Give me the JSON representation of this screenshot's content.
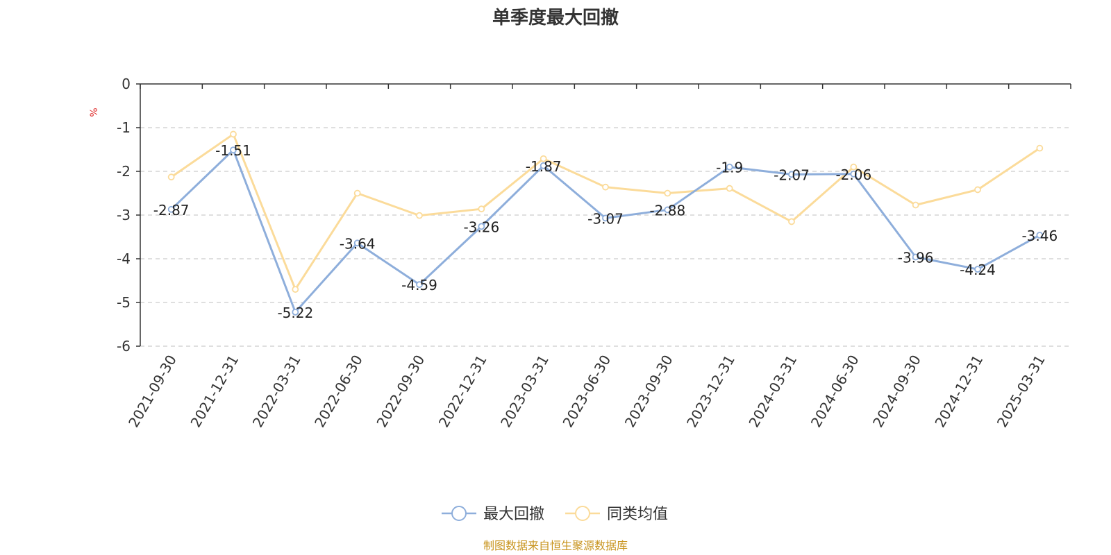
{
  "chart_data": {
    "type": "line",
    "title": "单季度最大回撤",
    "ylabel": "%",
    "ylim": [
      -6,
      0
    ],
    "yticks": [
      0,
      -1,
      -2,
      -3,
      -4,
      -5,
      -6
    ],
    "grid": true,
    "categories": [
      "2021-09-30",
      "2021-12-31",
      "2022-03-31",
      "2022-06-30",
      "2022-09-30",
      "2022-12-31",
      "2023-03-31",
      "2023-06-30",
      "2023-09-30",
      "2023-12-31",
      "2024-03-31",
      "2024-06-30",
      "2024-09-30",
      "2024-12-31",
      "2025-03-31"
    ],
    "series": [
      {
        "name": "最大回撤",
        "color": "#8eaedb",
        "values": [
          -2.87,
          -1.51,
          -5.22,
          -3.64,
          -4.59,
          -3.26,
          -1.87,
          -3.07,
          -2.88,
          -1.9,
          -2.07,
          -2.06,
          -3.96,
          -4.24,
          -3.46
        ],
        "labels": [
          "-2.87",
          "-1.51",
          "-5.22",
          "-3.64",
          "-4.59",
          "-3.26",
          "-1.87",
          "-3.07",
          "-2.88",
          "-1.9",
          "-2.07",
          "-2.06",
          "-3.96",
          "-4.24",
          "-3.46"
        ]
      },
      {
        "name": "同类均值",
        "color": "#fbdb9a",
        "values": [
          -2.13,
          -1.15,
          -4.7,
          -2.5,
          -3.01,
          -2.86,
          -1.71,
          -2.36,
          -2.5,
          -2.39,
          -3.15,
          -1.9,
          -2.77,
          -2.42,
          -1.47
        ]
      }
    ],
    "legend_position": "bottom-center"
  },
  "source_note": "制图数据来自恒生聚源数据库"
}
